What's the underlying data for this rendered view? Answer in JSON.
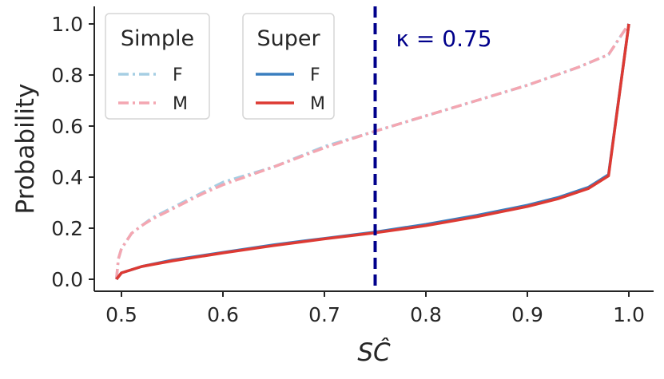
{
  "chart_data": {
    "type": "line",
    "title": "",
    "xlabel": "SĈ",
    "ylabel": "Probability",
    "xlim": [
      0.47,
      1.025
    ],
    "ylim": [
      -0.05,
      1.05
    ],
    "xticks": [
      0.5,
      0.6,
      0.7,
      0.8,
      0.9,
      1.0
    ],
    "xtick_labels": [
      "0.5",
      "0.6",
      "0.7",
      "0.8",
      "0.9",
      "1.0"
    ],
    "yticks": [
      0.0,
      0.2,
      0.4,
      0.6,
      0.8,
      1.0
    ],
    "ytick_labels": [
      "0.0",
      "0.2",
      "0.4",
      "0.6",
      "0.8",
      "1.0"
    ],
    "grid": false,
    "vline": {
      "x": 0.75,
      "label": "κ = 0.75",
      "color": "#00008b",
      "style": "dashed"
    },
    "legends": [
      {
        "title": "Simple",
        "placement": "top-left",
        "entries": [
          {
            "label": "F",
            "color": "#a6cee3",
            "style": "dashdot"
          },
          {
            "label": "M",
            "color": "#f4a6b1",
            "style": "dashdot"
          }
        ]
      },
      {
        "title": "Super",
        "placement": "top-center-left",
        "entries": [
          {
            "label": "F",
            "color": "#3a7ebf",
            "style": "solid"
          },
          {
            "label": "M",
            "color": "#dd3a33",
            "style": "solid"
          }
        ]
      }
    ],
    "series": [
      {
        "legend": "Simple",
        "label": "F",
        "color": "#a6cee3",
        "style": "dashdot",
        "x": [
          0.495,
          0.497,
          0.5,
          0.51,
          0.52,
          0.53,
          0.55,
          0.58,
          0.6,
          0.65,
          0.7,
          0.75,
          0.8,
          0.85,
          0.9,
          0.95,
          0.98,
          1.0
        ],
        "y": [
          0.0,
          0.08,
          0.12,
          0.18,
          0.21,
          0.24,
          0.28,
          0.34,
          0.38,
          0.44,
          0.52,
          0.58,
          0.64,
          0.7,
          0.76,
          0.83,
          0.88,
          1.0
        ]
      },
      {
        "legend": "Simple",
        "label": "M",
        "color": "#f4a6b1",
        "style": "dashdot",
        "x": [
          0.495,
          0.497,
          0.5,
          0.51,
          0.52,
          0.53,
          0.55,
          0.58,
          0.6,
          0.65,
          0.7,
          0.75,
          0.8,
          0.85,
          0.9,
          0.95,
          0.98,
          1.0
        ],
        "y": [
          0.0,
          0.08,
          0.12,
          0.18,
          0.21,
          0.235,
          0.275,
          0.335,
          0.37,
          0.44,
          0.515,
          0.58,
          0.64,
          0.7,
          0.76,
          0.83,
          0.88,
          1.0
        ]
      },
      {
        "legend": "Super",
        "label": "F",
        "color": "#3a7ebf",
        "style": "solid",
        "x": [
          0.495,
          0.5,
          0.52,
          0.55,
          0.6,
          0.65,
          0.7,
          0.75,
          0.8,
          0.85,
          0.9,
          0.93,
          0.96,
          0.98,
          1.0
        ],
        "y": [
          0.0,
          0.025,
          0.05,
          0.075,
          0.105,
          0.135,
          0.16,
          0.185,
          0.215,
          0.25,
          0.29,
          0.32,
          0.36,
          0.41,
          1.0
        ]
      },
      {
        "legend": "Super",
        "label": "M",
        "color": "#dd3a33",
        "style": "solid",
        "x": [
          0.495,
          0.5,
          0.52,
          0.55,
          0.6,
          0.65,
          0.7,
          0.75,
          0.8,
          0.85,
          0.9,
          0.93,
          0.96,
          0.98,
          1.0
        ],
        "y": [
          0.0,
          0.025,
          0.05,
          0.072,
          0.103,
          0.132,
          0.158,
          0.182,
          0.21,
          0.245,
          0.285,
          0.315,
          0.355,
          0.405,
          1.0
        ]
      }
    ]
  }
}
